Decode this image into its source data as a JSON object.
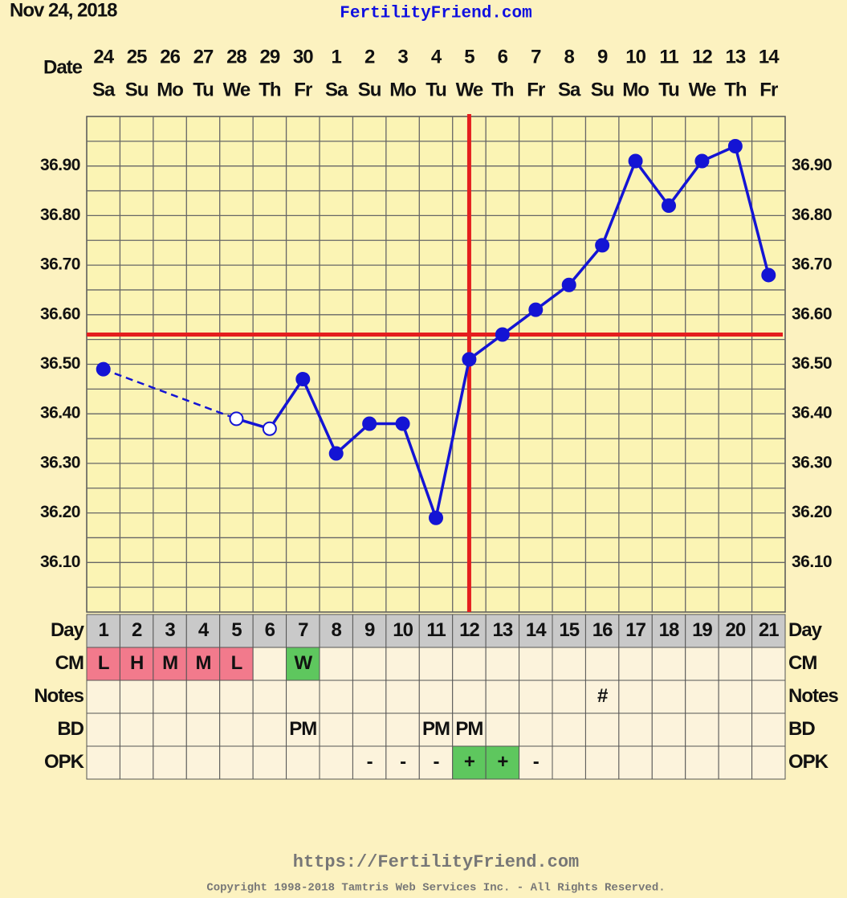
{
  "header": {
    "date": "Nov 24, 2018",
    "site": "FertilityFriend.com"
  },
  "chart_data": {
    "type": "line",
    "date_label": "Date",
    "dates": [
      24,
      25,
      26,
      27,
      28,
      29,
      30,
      1,
      2,
      3,
      4,
      5,
      6,
      7,
      8,
      9,
      10,
      11,
      12,
      13,
      14
    ],
    "weekdays": [
      "Sa",
      "Su",
      "Mo",
      "Tu",
      "We",
      "Th",
      "Fr",
      "Sa",
      "Su",
      "Mo",
      "Tu",
      "We",
      "Th",
      "Fr",
      "Sa",
      "Su",
      "Mo",
      "Tu",
      "We",
      "Th",
      "Fr"
    ],
    "day_label": "Day",
    "categories": [
      1,
      2,
      3,
      4,
      5,
      6,
      7,
      8,
      9,
      10,
      11,
      12,
      13,
      14,
      15,
      16,
      17,
      18,
      19,
      20,
      21
    ],
    "series": [
      {
        "color": "#1414d4",
        "values": [
          36.49,
          null,
          null,
          null,
          36.39,
          36.37,
          36.47,
          36.32,
          36.38,
          36.38,
          36.19,
          36.51,
          36.56,
          36.61,
          36.66,
          36.74,
          36.91,
          36.82,
          36.91,
          36.94,
          36.68
        ],
        "open": [
          false,
          false,
          false,
          false,
          true,
          true,
          false,
          false,
          false,
          false,
          false,
          false,
          false,
          false,
          false,
          false,
          false,
          false,
          false,
          false,
          false
        ]
      }
    ],
    "gap_line": "dashed",
    "ylim": [
      36.0,
      37.0
    ],
    "yticks": [
      {
        "value": 36.1,
        "label": "36.10"
      },
      {
        "value": 36.2,
        "label": "36.20"
      },
      {
        "value": 36.3,
        "label": "36.30"
      },
      {
        "value": 36.4,
        "label": "36.40"
      },
      {
        "value": 36.5,
        "label": "36.50"
      },
      {
        "value": 36.6,
        "label": "36.60"
      },
      {
        "value": 36.7,
        "label": "36.70"
      },
      {
        "value": 36.8,
        "label": "36.80"
      },
      {
        "value": 36.9,
        "label": "36.90"
      }
    ],
    "yminor": [
      36.05,
      36.15,
      36.25,
      36.35,
      36.45,
      36.55,
      36.65,
      36.75,
      36.85,
      36.95
    ],
    "grid": true,
    "coverline": 36.56,
    "coverline_color": "#e41e1e",
    "ovulation_day": 12,
    "rows": [
      {
        "label": "CM",
        "cells": [
          "L",
          "H",
          "M",
          "M",
          "L",
          null,
          "W",
          null,
          null,
          null,
          null,
          null,
          null,
          null,
          null,
          null,
          null,
          null,
          null,
          null,
          null
        ],
        "colors": {
          "L": "#f27a8c",
          "H": "#f27a8c",
          "M": "#f27a8c",
          "W": "#5ec75e"
        }
      },
      {
        "label": "Notes",
        "cells": [
          null,
          null,
          null,
          null,
          null,
          null,
          null,
          null,
          null,
          null,
          null,
          null,
          null,
          null,
          null,
          "#",
          null,
          null,
          null,
          null,
          null
        ],
        "colors": {}
      },
      {
        "label": "BD",
        "cells": [
          null,
          null,
          null,
          null,
          null,
          null,
          "PM",
          null,
          null,
          null,
          "PM",
          "PM",
          null,
          null,
          null,
          null,
          null,
          null,
          null,
          null,
          null
        ],
        "colors": {}
      },
      {
        "label": "OPK",
        "cells": [
          null,
          null,
          null,
          null,
          null,
          null,
          null,
          null,
          "-",
          "-",
          "-",
          "+",
          "+",
          "-",
          null,
          null,
          null,
          null,
          null,
          null,
          null
        ],
        "colors": {
          "+": "#5ec75e"
        }
      }
    ]
  },
  "footer": {
    "url": "https://FertilityFriend.com",
    "copyright": "Copyright 1998-2018 Tamtris Web Services Inc. - All Rights Reserved."
  }
}
